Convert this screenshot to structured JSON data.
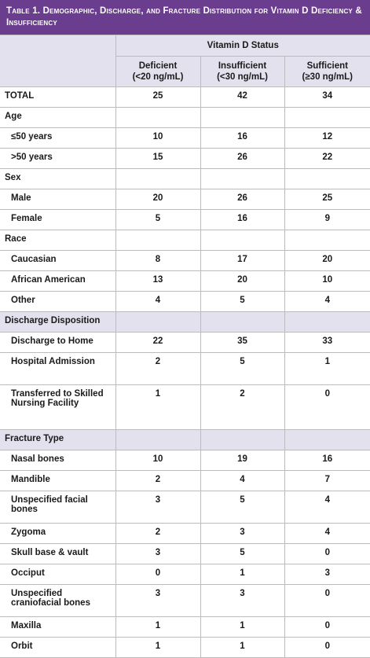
{
  "title": "Table 1. Demographic, Discharge, and Fracture Distribution for Vitamin D Deficiency & Insufficiency",
  "header": {
    "group": "Vitamin D Status",
    "columns": [
      {
        "name": "Deficient",
        "sub": "(<20 ng/mL)"
      },
      {
        "name": "Insufficient",
        "sub": "(<30 ng/mL)"
      },
      {
        "name": "Sufficient",
        "sub": "(≥30 ng/mL)"
      }
    ]
  },
  "rows": [
    {
      "type": "data",
      "label": "TOTAL",
      "indent": false,
      "values": [
        "25",
        "42",
        "34"
      ]
    },
    {
      "type": "group",
      "label": "Age"
    },
    {
      "type": "data",
      "label": "≤50 years",
      "indent": true,
      "values": [
        "10",
        "16",
        "12"
      ]
    },
    {
      "type": "data",
      "label": ">50 years",
      "indent": true,
      "values": [
        "15",
        "26",
        "22"
      ]
    },
    {
      "type": "group",
      "label": "Sex"
    },
    {
      "type": "data",
      "label": "Male",
      "indent": true,
      "values": [
        "20",
        "26",
        "25"
      ]
    },
    {
      "type": "data",
      "label": "Female",
      "indent": true,
      "values": [
        "5",
        "16",
        "9"
      ]
    },
    {
      "type": "group",
      "label": "Race"
    },
    {
      "type": "data",
      "label": "Caucasian",
      "indent": true,
      "values": [
        "8",
        "17",
        "20"
      ]
    },
    {
      "type": "data",
      "label": "African American",
      "indent": true,
      "values": [
        "13",
        "20",
        "10"
      ]
    },
    {
      "type": "data",
      "label": "Other",
      "indent": true,
      "values": [
        "4",
        "5",
        "4"
      ]
    },
    {
      "type": "section",
      "label": "Discharge Disposition"
    },
    {
      "type": "data",
      "label": "Discharge to Home",
      "indent": true,
      "values": [
        "22",
        "35",
        "33"
      ]
    },
    {
      "type": "data",
      "label": "Hospital Admission",
      "indent": true,
      "values": [
        "2",
        "5",
        "1"
      ]
    },
    {
      "type": "data",
      "label": "Transferred to Skilled Nursing Facility",
      "indent": true,
      "values": [
        "1",
        "2",
        "0"
      ]
    },
    {
      "type": "section",
      "label": "Fracture Type"
    },
    {
      "type": "data",
      "label": "Nasal bones",
      "indent": true,
      "values": [
        "10",
        "19",
        "16"
      ]
    },
    {
      "type": "data",
      "label": "Mandible",
      "indent": true,
      "values": [
        "2",
        "4",
        "7"
      ]
    },
    {
      "type": "data",
      "label": "Unspecified facial bones",
      "indent": true,
      "values": [
        "3",
        "5",
        "4"
      ]
    },
    {
      "type": "data",
      "label": "Zygoma",
      "indent": true,
      "values": [
        "2",
        "3",
        "4"
      ]
    },
    {
      "type": "data",
      "label": "Skull base & vault",
      "indent": true,
      "values": [
        "3",
        "5",
        "0"
      ]
    },
    {
      "type": "data",
      "label": "Occiput",
      "indent": true,
      "values": [
        "0",
        "1",
        "3"
      ]
    },
    {
      "type": "data",
      "label": "Unspecified craniofacial bones",
      "indent": true,
      "values": [
        "3",
        "3",
        "0"
      ]
    },
    {
      "type": "data",
      "label": "Maxilla",
      "indent": true,
      "values": [
        "1",
        "1",
        "0"
      ]
    },
    {
      "type": "data",
      "label": "Orbit",
      "indent": true,
      "values": [
        "1",
        "1",
        "0"
      ]
    }
  ],
  "colors": {
    "title_bg": "#6a3d8f",
    "section_bg": "#e4e1ee",
    "border": "#bcbcbc"
  }
}
